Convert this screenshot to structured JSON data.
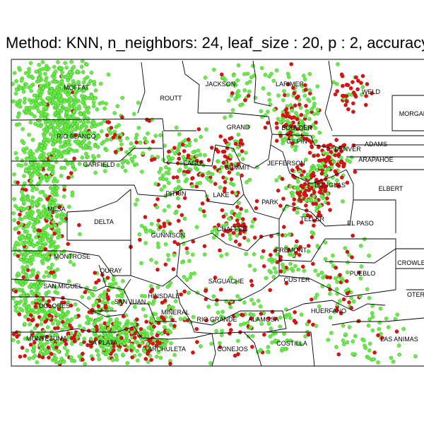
{
  "title": "Method: KNN, n_neighbors: 24, leaf_size : 20, p : 2, accuracy",
  "colors": {
    "green_point": "#66ee44",
    "red_point": "#dd1111",
    "county_border": "#000000",
    "background": "#ffffff"
  },
  "counties": [
    "MOFFAT",
    "ROUTT",
    "JACKSON",
    "LARIMER",
    "WELD",
    "MORGAN",
    "RIO BLANCO",
    "GRAND",
    "BOULDER",
    "GILPIN",
    "DENVER",
    "ADAMS",
    "ARAPAHOE",
    "GARFIELD",
    "EAGLE",
    "SUMMIT",
    "JEFFERSON",
    "DOUGLAS",
    "ELBERT",
    "PITKIN",
    "LAKE",
    "PARK",
    "MESA",
    "DELTA",
    "TELLER",
    "EL PASO",
    "GUNNISON",
    "CHAFFEE",
    "FREMONT",
    "MONTROSE",
    "OURAY",
    "PUEBLO",
    "CROWLEY",
    "SAN MIGUEL",
    "SAGUACHE",
    "CUSTER",
    "OTERO",
    "HINSDALE",
    "SAN JUAN",
    "DOLORES",
    "MINERAL",
    "RIO GRANDE",
    "ALAMOSA",
    "HUERFANO",
    "MONTEZUMA",
    "LA PLATA",
    "ARCHULETA",
    "CONEJOS",
    "COSTILLA",
    "LAS ANIMAS"
  ]
}
